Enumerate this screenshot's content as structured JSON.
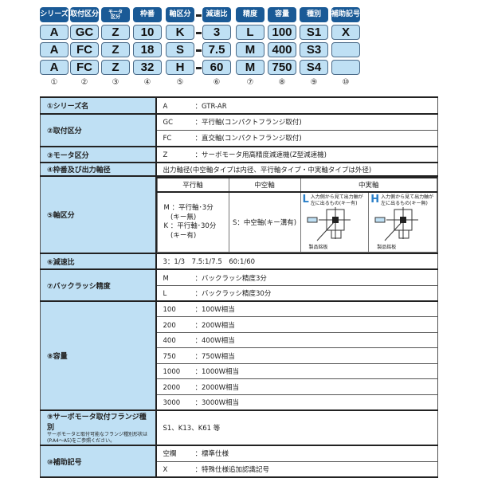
{
  "code": {
    "columns": [
      {
        "header": "シリーズ",
        "rows": [
          "A",
          "A",
          "A"
        ],
        "num": "①"
      },
      {
        "header": "取付区分",
        "rows": [
          "GC",
          "FC",
          "FC"
        ],
        "num": "②"
      },
      {
        "header": "モータ区分",
        "header_lines": [
          "モータ",
          "区分"
        ],
        "rows": [
          "Z",
          "Z",
          "Z"
        ],
        "num": "③"
      },
      {
        "header": "枠番",
        "rows": [
          "10",
          "18",
          "32"
        ],
        "num": "④"
      },
      {
        "header": "軸区分",
        "rows": [
          "K",
          "S",
          "H"
        ],
        "num": "⑤"
      },
      {
        "header": "減速比",
        "rows": [
          "3",
          "7.5",
          "60"
        ],
        "num": "⑥"
      },
      {
        "header": "精度",
        "rows": [
          "L",
          "M",
          "M"
        ],
        "num": "⑦"
      },
      {
        "header": "容量",
        "rows": [
          "100",
          "400",
          "750"
        ],
        "num": "⑧"
      },
      {
        "header": "種別",
        "rows": [
          "S1",
          "S3",
          "S4"
        ],
        "num": "⑨"
      },
      {
        "header": "補助記号",
        "rows": [
          "X",
          "",
          ""
        ],
        "num": "⑩"
      }
    ]
  },
  "spec": {
    "r1": {
      "label": "①シリーズ名",
      "k": "A",
      "v": "：GTR-AR"
    },
    "r2": {
      "label": "②取付区分",
      "items": [
        {
          "k": "GC",
          "v": "：平行軸(コンパクトフランジ取付)"
        },
        {
          "k": "FC",
          "v": "：直交軸(コンパクトフランジ取付)"
        }
      ]
    },
    "r3": {
      "label": "③モータ区分",
      "k": "Z",
      "v": "：サーボモータ用高精度減速機(Z型減速機)"
    },
    "r4": {
      "label": "④枠番及び出力軸径",
      "v": "出力軸径(中空軸タイプは内径、平行軸タイプ・中実軸タイプは外径)"
    },
    "r5": {
      "label": "⑤軸区分",
      "h1": "平行軸",
      "h2": "中空軸",
      "h3": "中実軸",
      "parallel": [
        "M ：平行軸･3分",
        "　(キー無)",
        "K ：平行軸･30分",
        "　(キー有)"
      ],
      "hollow": "S：中空軸(キー溝有)",
      "L": {
        "letter": "L",
        "desc": "入力側から見て出力軸が左に出るもの(キー有)",
        "plate": "製品銘板"
      },
      "H": {
        "letter": "H",
        "desc": "入力側から見て出力軸が左に出るもの(キー無)",
        "plate": "製品銘板"
      }
    },
    "r6": {
      "label": "⑥減速比",
      "v": "3：1/3　7.5:1/7.5　60:1/60"
    },
    "r7": {
      "label": "⑦バックラッシ精度",
      "items": [
        {
          "k": "M",
          "v": "：バックラッシ精度3分"
        },
        {
          "k": "L",
          "v": "：バックラッシ精度30分"
        }
      ]
    },
    "r8": {
      "label": "⑧容量",
      "items": [
        {
          "k": "100",
          "v": "：100W相当"
        },
        {
          "k": "200",
          "v": "：200W相当"
        },
        {
          "k": "400",
          "v": "：400W相当"
        },
        {
          "k": "750",
          "v": "：750W相当"
        },
        {
          "k": "1000",
          "v": "：1000W相当"
        },
        {
          "k": "2000",
          "v": "：2000W相当"
        },
        {
          "k": "3000",
          "v": "：3000W相当"
        }
      ]
    },
    "r9": {
      "label": "⑨サーボモータ取付フランジ種別",
      "note1": "サーボモータと取付可能なフランジ種別形状は",
      "note2": "(P.A4～A5)をご参照ください。",
      "v": "S1、K13、K61 等"
    },
    "r10": {
      "label": "⑩補助記号",
      "items": [
        {
          "k": "空欄",
          "v": "：標準仕様"
        },
        {
          "k": "X",
          "v": "：特殊仕様追加認識記号"
        }
      ]
    }
  },
  "colors": {
    "header": "#1a5a96",
    "cell": "#bfe0f4",
    "accent": "#2a7fc8"
  }
}
